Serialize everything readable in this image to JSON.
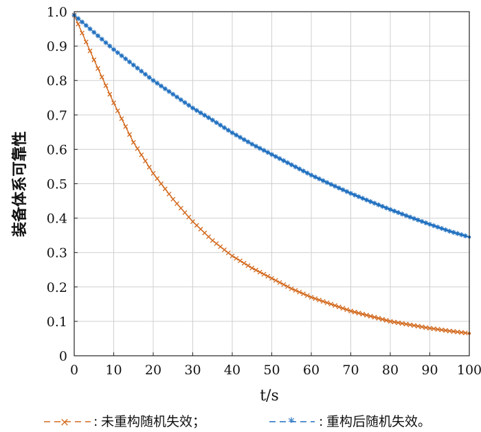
{
  "chart_data": {
    "type": "line",
    "xlabel": "t/s",
    "ylabel": "装备体系可靠性",
    "xlim": [
      0,
      100
    ],
    "ylim": [
      0,
      1.0
    ],
    "xticks": [
      "0",
      "10",
      "20",
      "30",
      "40",
      "50",
      "60",
      "70",
      "80",
      "90",
      "100"
    ],
    "yticks": [
      "0",
      "0.1",
      "0.2",
      "0.3",
      "0.4",
      "0.5",
      "0.6",
      "0.7",
      "0.8",
      "0.9",
      "1.0"
    ],
    "grid": true,
    "legend_position": "bottom",
    "legend_suffix": "。",
    "x": [
      0,
      5,
      10,
      15,
      20,
      25,
      30,
      35,
      40,
      45,
      50,
      55,
      60,
      65,
      70,
      75,
      80,
      85,
      90,
      95,
      100
    ],
    "series": [
      {
        "name": "未重构随机失效；",
        "color": "#d2691e",
        "marker": "×",
        "values": [
          0.99,
          0.86,
          0.735,
          0.62,
          0.53,
          0.455,
          0.39,
          0.335,
          0.29,
          0.255,
          0.225,
          0.195,
          0.17,
          0.15,
          0.13,
          0.115,
          0.1,
          0.09,
          0.08,
          0.072,
          0.065
        ]
      },
      {
        "name": "重构后随机失效",
        "color": "#1f6fbf",
        "marker": "*",
        "values": [
          0.99,
          0.94,
          0.89,
          0.845,
          0.8,
          0.76,
          0.72,
          0.685,
          0.648,
          0.615,
          0.585,
          0.555,
          0.525,
          0.498,
          0.472,
          0.448,
          0.425,
          0.403,
          0.382,
          0.362,
          0.345
        ]
      }
    ]
  }
}
